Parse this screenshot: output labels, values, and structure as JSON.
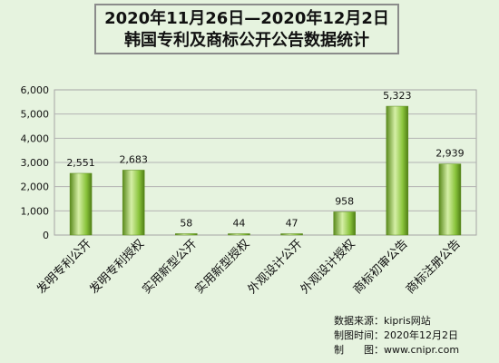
{
  "chart_data": {
    "type": "bar",
    "title_lines": [
      "2020年11月26日—2020年12月2日",
      "韩国专利及商标公开公告数据统计"
    ],
    "categories": [
      "发明专利公开",
      "发明专利授权",
      "实用新型公开",
      "实用新型授权",
      "外观设计公开",
      "外观设计授权",
      "商标初审公告",
      "商标注册公告"
    ],
    "values": [
      2551,
      2683,
      58,
      44,
      47,
      958,
      5323,
      2939
    ],
    "value_labels": [
      "2,551",
      "2,683",
      "58",
      "44",
      "47",
      "958",
      "5,323",
      "2,939"
    ],
    "ylim": [
      0,
      6000
    ],
    "yticks": [
      0,
      1000,
      2000,
      3000,
      4000,
      5000,
      6000
    ],
    "ytick_labels": [
      "0",
      "1,000",
      "2,000",
      "3,000",
      "4,000",
      "5,000",
      "6,000"
    ],
    "grid": true,
    "bar_color": "#8ac43c",
    "bar_dark": "#5a8a1c",
    "bar_light": "#d5efa6"
  },
  "notes": {
    "source": "数据来源：kipris网站",
    "date": "制图时间：2020年12月2日",
    "author": "制　　图：www.cnipr.com"
  }
}
